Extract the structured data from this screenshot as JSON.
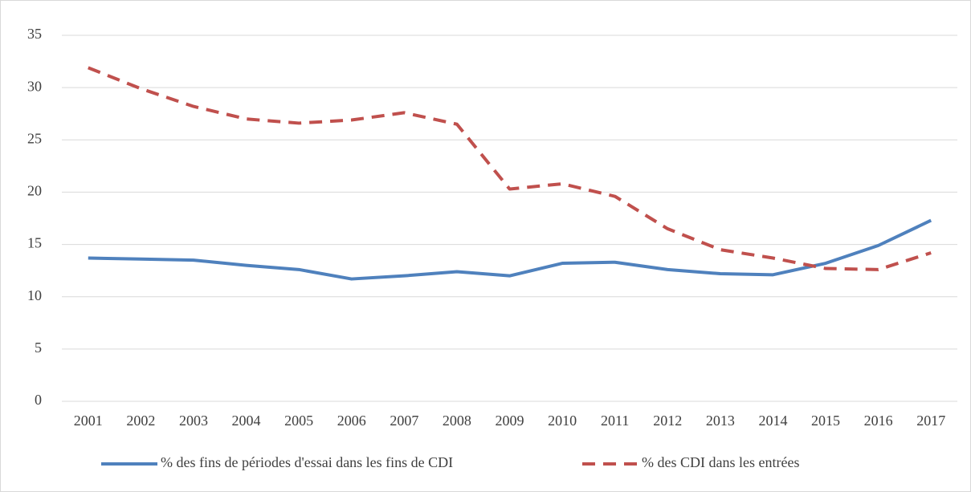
{
  "chart_data": {
    "type": "line",
    "categories": [
      "2001",
      "2002",
      "2003",
      "2004",
      "2005",
      "2006",
      "2007",
      "2008",
      "2009",
      "2010",
      "2011",
      "2012",
      "2013",
      "2014",
      "2015",
      "2016",
      "2017"
    ],
    "series": [
      {
        "name": "% des fins de périodes d'essai dans les fins de CDI",
        "color": "#4f81bd",
        "dash": false,
        "values": [
          13.7,
          13.6,
          13.5,
          13.0,
          12.6,
          11.7,
          12.0,
          12.4,
          12.0,
          13.2,
          13.3,
          12.6,
          12.2,
          12.1,
          13.2,
          14.9,
          17.3
        ]
      },
      {
        "name": "% des CDI dans les entrées",
        "color": "#c0504d",
        "dash": true,
        "values": [
          31.9,
          29.9,
          28.2,
          27.0,
          26.6,
          26.9,
          27.6,
          26.5,
          20.3,
          20.8,
          19.6,
          16.5,
          14.5,
          13.7,
          12.7,
          12.6,
          14.2
        ]
      }
    ],
    "ylim": [
      0,
      35
    ],
    "yticks": [
      0,
      5,
      10,
      15,
      20,
      25,
      30,
      35
    ],
    "grid": true,
    "legend": "bottom"
  }
}
